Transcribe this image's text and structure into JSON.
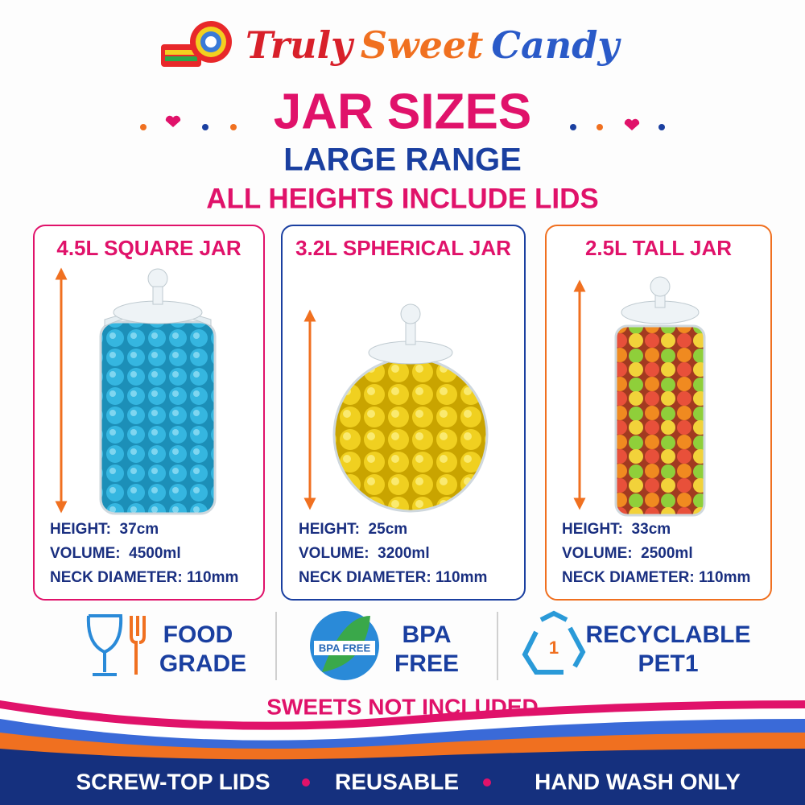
{
  "brand": {
    "part1": "Truly",
    "part2": "Sweet",
    "part3": "Candy"
  },
  "header": {
    "title": "JAR SIZES",
    "subtitle": "LARGE RANGE",
    "note": "ALL HEIGHTS INCLUDE LIDS"
  },
  "jars": [
    {
      "title": "4.5L SQUARE JAR",
      "specs": [
        "HEIGHT:  37cm",
        "VOLUME:  4500ml",
        "NECK DIAMETER: 110mm"
      ]
    },
    {
      "title": "3.2L SPHERICAL JAR",
      "specs": [
        "HEIGHT:  25cm",
        "VOLUME:  3200ml",
        "NECK DIAMETER: 110mm"
      ]
    },
    {
      "title": "2.5L TALL JAR",
      "specs": [
        "HEIGHT:  33cm",
        "VOLUME:  2500ml",
        "NECK DIAMETER: 110mm"
      ]
    }
  ],
  "features": [
    {
      "lines": [
        "FOOD",
        "GRADE"
      ]
    },
    {
      "badge": "BPA FREE",
      "lines": [
        "BPA",
        "FREE"
      ]
    },
    {
      "icon": "1",
      "lines": [
        "RECYCLABLE",
        "PET1"
      ]
    }
  ],
  "disclaimer": "SWEETS NOT INCLUDED",
  "footer": [
    "SCREW-TOP LIDS",
    "REUSABLE",
    "HAND WASH ONLY"
  ]
}
